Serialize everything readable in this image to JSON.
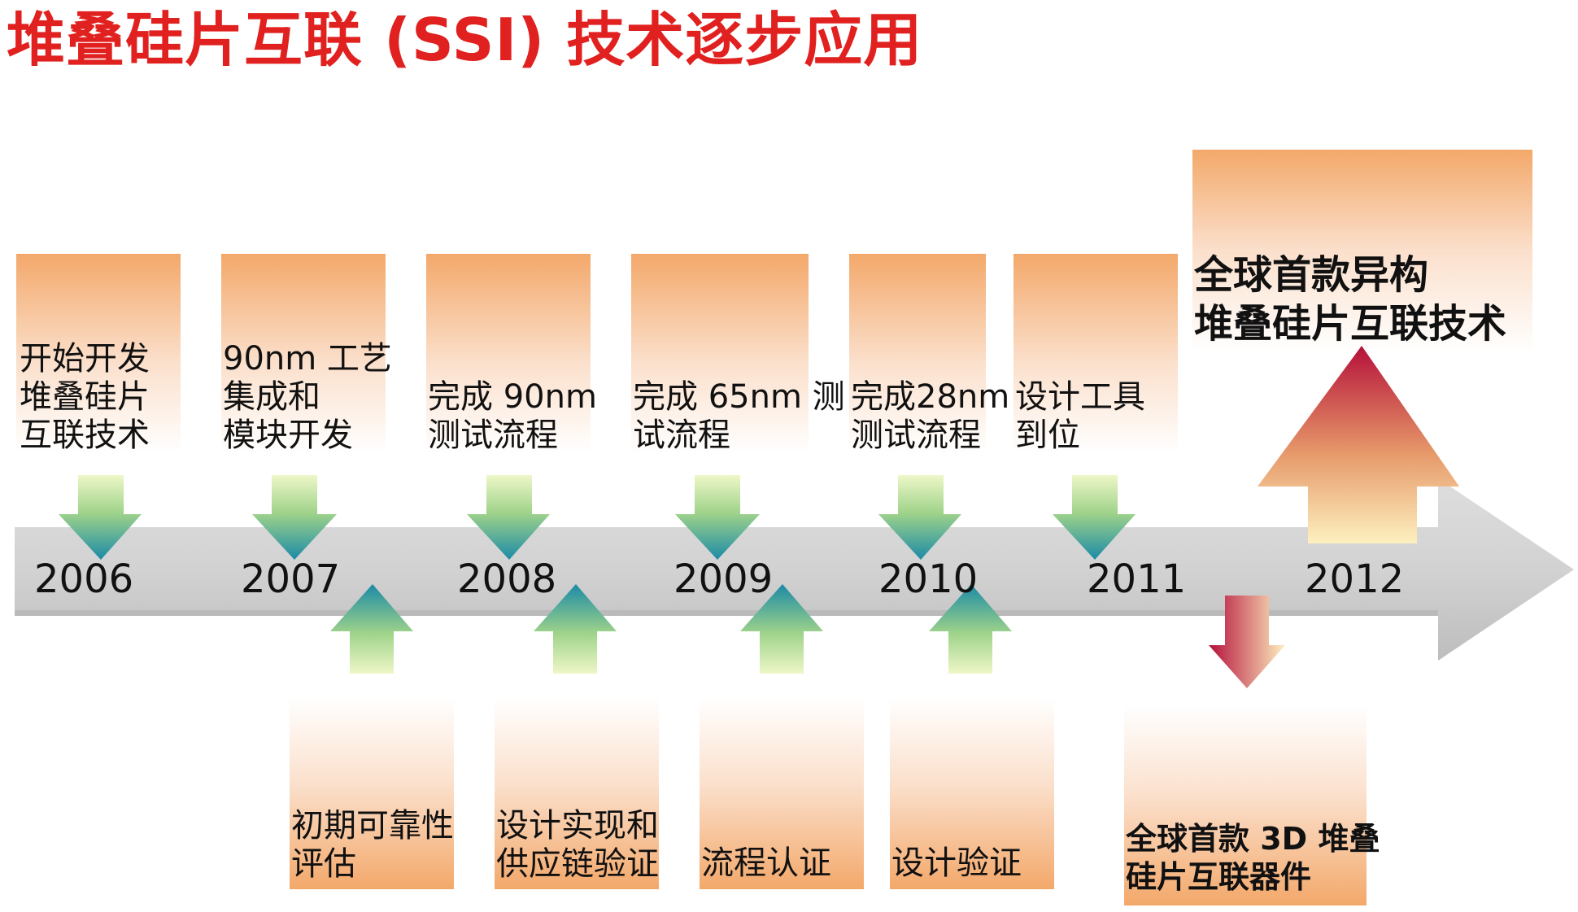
{
  "title": "堆叠硅片互联 (SSI) 技术逐步应用",
  "years": [
    "2006",
    "2007",
    "2008",
    "2009",
    "2010",
    "2011",
    "2012"
  ],
  "top_milestones": [
    {
      "line1": "开始开发",
      "line2": "堆叠硅片",
      "line3": "互联技术"
    },
    {
      "line1": "90nm 工艺",
      "line2": "集成和",
      "line3": "模块开发"
    },
    {
      "line1": "完成 90nm",
      "line2": "测试流程"
    },
    {
      "line1": "完成 65nm 测",
      "line2": "试流程"
    },
    {
      "line1": "完成28nm",
      "line2": "测试流程"
    },
    {
      "line1": "设计工具",
      "line2": "到位"
    }
  ],
  "bottom_milestones": [
    {
      "line1": "初期可靠性",
      "line2": "评估"
    },
    {
      "line1": "设计实现和",
      "line2": "供应链验证"
    },
    {
      "line1": "流程认证"
    },
    {
      "line1": "设计验证"
    }
  ],
  "highlight_top": {
    "line1": "全球首款异构",
    "line2": "堆叠硅片互联技术"
  },
  "highlight_bottom": {
    "line1": "全球首款 3D 堆叠",
    "line2": "硅片互联器件"
  },
  "colors": {
    "title": "#e0211f",
    "box_orange": "#f3a86a",
    "timeline_gray": "#c8c8c8",
    "arrow_teal": "#1b8aa6",
    "arrow_green": "#c8e79a",
    "arrow_red": "#b8103a",
    "arrow_cream": "#fbe9b8"
  }
}
